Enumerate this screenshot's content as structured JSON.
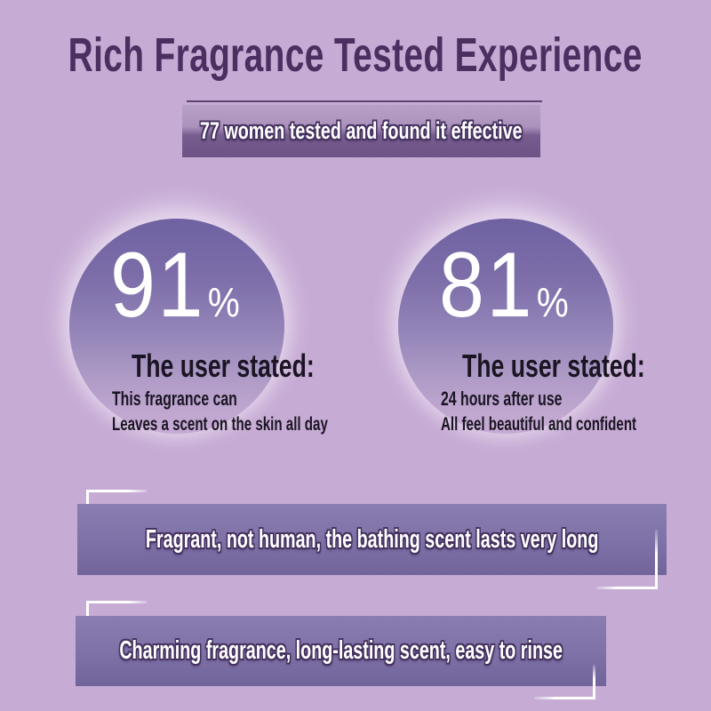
{
  "page": {
    "title": "Rich Fragrance Tested Experience",
    "subtitle_banner": "77 women tested and found it effective"
  },
  "stats": [
    {
      "percent": "91",
      "symbol": "%",
      "heading": "The user stated:",
      "detail_1": "This fragrance can",
      "detail_2": "Leaves a scent on the skin all day"
    },
    {
      "percent": "81",
      "symbol": "%",
      "heading": "The user stated:",
      "detail_1": "24 hours after use",
      "detail_2": "All feel beautiful and confident"
    }
  ],
  "ribbons": [
    {
      "label": "Fragrant, not human, the bathing scent lasts very long"
    },
    {
      "label": "Charming fragrance, long-lasting scent, easy to rinse"
    }
  ],
  "colors": {
    "background": "#c6abd4",
    "title_text": "#4c2e61",
    "circle_top": "#6f62a2",
    "banner_dark": "#6d5385",
    "ribbon_fill": "#7e72a8",
    "body_text": "#1b1523",
    "text_outline": "#463260",
    "bracket": "#ffffff"
  }
}
